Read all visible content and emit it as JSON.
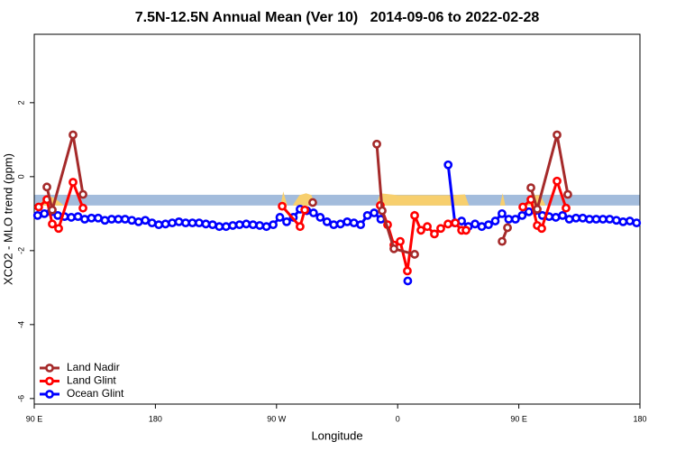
{
  "chart_data": {
    "type": "line",
    "title": "7.5N-12.5N Annual Mean (Ver 10)   2014-09-06 to 2022-02-28",
    "xlabel": "Longitude",
    "ylabel": "XCO2 - MLO trend (ppm)",
    "xlim": [
      90,
      540
    ],
    "ylim": [
      -6.15,
      3.85
    ],
    "xticks": [
      {
        "value": 90,
        "label": "90 E"
      },
      180,
      {
        "value": 270,
        "label": "90 W"
      },
      {
        "value": 360,
        "label": "0"
      },
      {
        "value": 450,
        "label": "90 E"
      },
      {
        "value": 540,
        "label": "180"
      }
    ],
    "yticks": [
      2,
      0,
      -2,
      -4,
      -6
    ],
    "legend": "lower left",
    "band": [
      -0.78,
      -0.49
    ],
    "band_color": "#a3bcdc",
    "shading_color": "#f7cf6e",
    "shading": [
      {
        "x": [
          93,
          100,
          106,
          112
        ],
        "values": [
          -0.78,
          -0.5,
          -0.6,
          -0.78
        ]
      },
      {
        "x": [
          273,
          275,
          278
        ],
        "values": [
          -0.78,
          -0.4,
          -0.78
        ]
      },
      {
        "x": [
          282,
          287,
          292,
          296,
          299
        ],
        "values": [
          -0.78,
          -0.5,
          -0.45,
          -0.5,
          -0.78
        ]
      },
      {
        "x": [
          344,
          347,
          360,
          400,
          410,
          413
        ],
        "values": [
          -0.78,
          -0.45,
          -0.5,
          -0.5,
          -0.48,
          -0.78
        ]
      },
      {
        "x": [
          436,
          438,
          440
        ],
        "values": [
          -0.78,
          -0.45,
          -0.78
        ]
      },
      {
        "x": [
          456,
          460,
          466,
          470
        ],
        "values": [
          -0.78,
          -0.5,
          -0.5,
          -0.78
        ]
      }
    ],
    "series": [
      {
        "name": "Land Nadir",
        "color": "#a52a2a",
        "x": [
          99.4,
          103.4,
          118.8,
          126.2,
          296.9,
          344.5,
          348.5,
          357.2,
          372.6,
          437.6,
          441.6,
          459,
          463.7,
          478.4,
          486.4
        ],
        "values": [
          -0.28,
          -0.9,
          1.13,
          -0.48,
          -0.7,
          0.88,
          -0.92,
          -1.95,
          -2.1,
          -1.75,
          -1.38,
          -0.3,
          -0.88,
          1.13,
          -0.48
        ]
      },
      {
        "name": "Land Glint",
        "color": "#ff0000",
        "x": [
          93.3,
          99.4,
          103.4,
          108.1,
          118.8,
          126.2,
          274.2,
          287.5,
          291,
          347.1,
          352.5,
          357.2,
          361.9,
          367.2,
          372.6,
          377.3,
          382,
          387.3,
          392,
          397.4,
          402.8,
          407.5,
          410.8,
          453,
          459,
          463.7,
          467,
          478.4,
          485.1
        ],
        "values": [
          -0.82,
          -0.62,
          -1.28,
          -1.4,
          -0.15,
          -0.85,
          -0.8,
          -1.35,
          -0.9,
          -0.78,
          -1.3,
          -1.85,
          -1.75,
          -2.55,
          -1.05,
          -1.45,
          -1.35,
          -1.55,
          -1.4,
          -1.28,
          -1.25,
          -1.45,
          -1.45,
          -0.82,
          -0.62,
          -1.32,
          -1.4,
          -0.12,
          -0.85
        ]
      },
      {
        "name": "Ocean Glint",
        "color": "#0000ff",
        "x": [
          92.5,
          97.5,
          102.5,
          107.5,
          112.5,
          117.5,
          122.5,
          127.5,
          132.5,
          137.5,
          142.5,
          147.5,
          152.5,
          157.5,
          162.5,
          167.5,
          172.5,
          177.5,
          182.5,
          187.5,
          192.5,
          197.5,
          202.5,
          207.5,
          212.5,
          217.5,
          222.5,
          227.5,
          232.5,
          237.5,
          242.5,
          247.5,
          252.5,
          257.5,
          262.5,
          267.5,
          272.5,
          277.5,
          282.5,
          287.5,
          292.5,
          297.5,
          302.5,
          307.5,
          312.5,
          317.5,
          322.5,
          327.5,
          332.5,
          337.5,
          342.5,
          347.5,
          367.5,
          397.5,
          402.5,
          407.5,
          412.5,
          417.5,
          422.5,
          427.5,
          432.5,
          437.5,
          442.5,
          447.5,
          452.5,
          457.5,
          462.5,
          467.5,
          472.5,
          477.5,
          482.5,
          487.5,
          492.5,
          497.5,
          502.5,
          507.5,
          512.5,
          517.5,
          522.5,
          527.5,
          532.5,
          537.5
        ],
        "values": [
          -1.05,
          -1.0,
          -0.95,
          -1.05,
          -1.08,
          -1.1,
          -1.08,
          -1.15,
          -1.12,
          -1.12,
          -1.18,
          -1.15,
          -1.15,
          -1.15,
          -1.18,
          -1.22,
          -1.18,
          -1.25,
          -1.3,
          -1.28,
          -1.25,
          -1.22,
          -1.25,
          -1.25,
          -1.25,
          -1.28,
          -1.3,
          -1.35,
          -1.35,
          -1.32,
          -1.3,
          -1.28,
          -1.3,
          -1.32,
          -1.35,
          -1.3,
          -1.1,
          -1.22,
          -1.1,
          -0.88,
          -0.92,
          -0.98,
          -1.1,
          -1.22,
          -1.3,
          -1.28,
          -1.22,
          -1.25,
          -1.3,
          -1.05,
          -0.98,
          -1.15,
          -2.82,
          0.32,
          -1.25,
          -1.2,
          -1.35,
          -1.28,
          -1.35,
          -1.3,
          -1.2,
          -1.0,
          -1.15,
          -1.15,
          -1.05,
          -0.95,
          -0.92,
          -1.05,
          -1.08,
          -1.1,
          -1.05,
          -1.15,
          -1.12,
          -1.12,
          -1.15,
          -1.15,
          -1.15,
          -1.15,
          -1.18,
          -1.22,
          -1.2,
          -1.25
        ]
      }
    ]
  }
}
